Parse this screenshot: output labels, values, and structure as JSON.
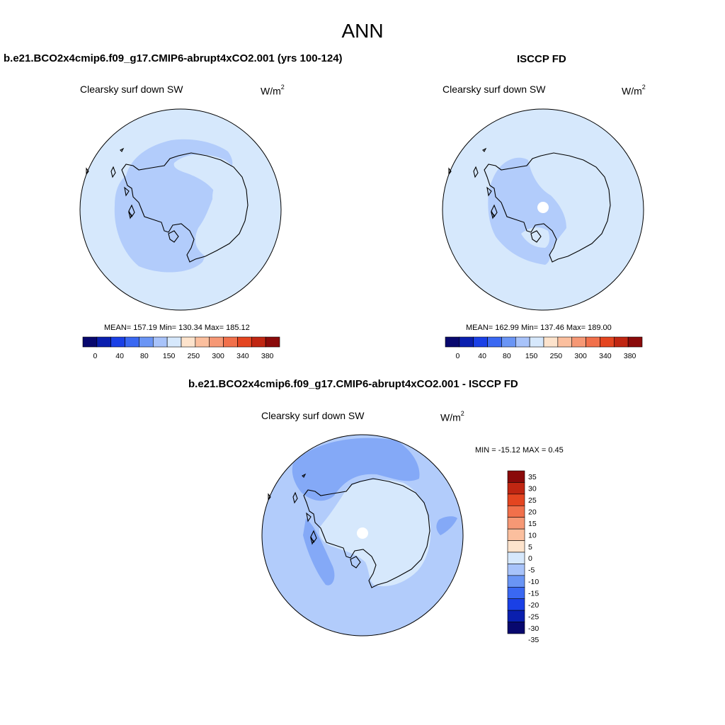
{
  "page": {
    "title": "ANN"
  },
  "panels": {
    "model": {
      "title": "b.e21.BCO2x4cmip6.f09_g17.CMIP6-abrupt4xCO2.001 (yrs 100-124)",
      "variable": "Clearsky surf down SW",
      "units_base": "W/m",
      "units_exp": "2",
      "stats": "MEAN= 157.19  Min= 130.34  Max= 185.12"
    },
    "obs": {
      "title": "ISCCP FD",
      "variable": "Clearsky surf down SW",
      "units_base": "W/m",
      "units_exp": "2",
      "stats": "MEAN= 162.99  Min= 137.46  Max= 189.00"
    },
    "diff": {
      "title": "b.e21.BCO2x4cmip6.f09_g17.CMIP6-abrupt4xCO2.001 - ISCCP FD",
      "variable": "Clearsky surf down SW",
      "units_base": "W/m",
      "units_exp": "2",
      "stats": "MIN = -15.12 MAX =   0.45"
    }
  },
  "colorbars": {
    "main": {
      "colors": [
        "#08086e",
        "#0a1fae",
        "#1a40e6",
        "#3a68f2",
        "#6a95f5",
        "#a8c3fa",
        "#d6e8fc",
        "#fde3cc",
        "#fbbf9e",
        "#f69875",
        "#f1704b",
        "#e44520",
        "#c02612",
        "#8a0a0a"
      ],
      "tick_labels": [
        "0",
        "40",
        "80",
        "150",
        "250",
        "300",
        "340",
        "380"
      ]
    },
    "diff": {
      "colors": [
        "#8a0a0a",
        "#c02612",
        "#e44520",
        "#f1704b",
        "#f69875",
        "#fbbf9e",
        "#fde3cc",
        "#d6e8fc",
        "#a8c3fa",
        "#6a95f5",
        "#3a68f2",
        "#1a40e6",
        "#0a1fae",
        "#08086e"
      ],
      "tick_labels": [
        "35",
        "30",
        "25",
        "20",
        "15",
        "10",
        "5",
        "0",
        "-5",
        "-10",
        "-15",
        "-20",
        "-25",
        "-30",
        "-35"
      ]
    }
  },
  "map_colors": {
    "light": "#d6e8fc",
    "mid": "#b2ccfb",
    "strong": "#84a9f7",
    "pole_hole": "#ffffff"
  }
}
